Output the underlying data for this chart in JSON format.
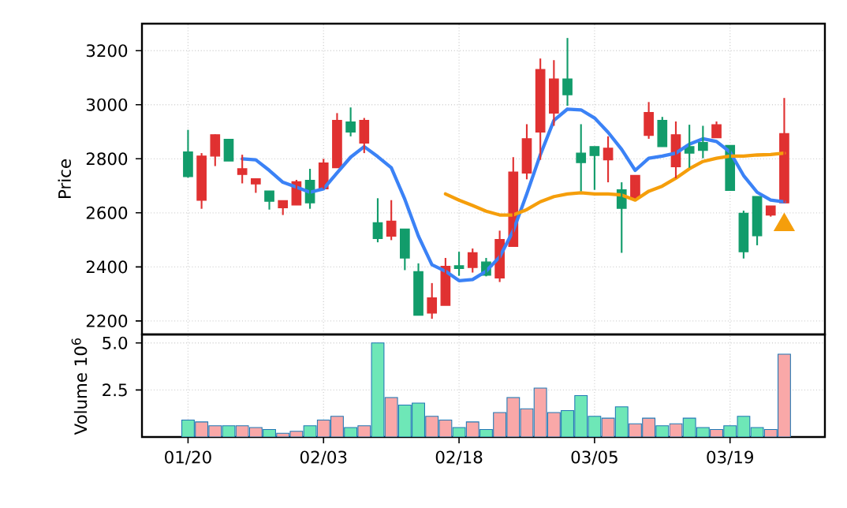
{
  "chart_data": [
    {
      "type": "candlestick",
      "ylabel": "Price",
      "categories": [
        null,
        null,
        null,
        null,
        null,
        null,
        null,
        null,
        null,
        null,
        null,
        null,
        null,
        null,
        null,
        null,
        null,
        null,
        null,
        null,
        null,
        null,
        null,
        null,
        null,
        null,
        null,
        null,
        null,
        null,
        null,
        null,
        null,
        null,
        null,
        null,
        null,
        null,
        null,
        null,
        null,
        null,
        null,
        null,
        null
      ],
      "ohlc": [
        [
          2734,
          2907,
          2730,
          2825
        ],
        [
          2810,
          2821,
          2615,
          2647
        ],
        [
          2889,
          2890,
          2773,
          2810
        ],
        [
          2792,
          2872,
          2792,
          2872
        ],
        [
          2763,
          2815,
          2709,
          2742
        ],
        [
          2726,
          2726,
          2674,
          2707
        ],
        [
          2643,
          2681,
          2612,
          2681
        ],
        [
          2645,
          2645,
          2592,
          2619
        ],
        [
          2715,
          2722,
          2629,
          2629
        ],
        [
          2637,
          2763,
          2615,
          2720
        ],
        [
          2784,
          2800,
          2689,
          2689
        ],
        [
          2942,
          2969,
          2767,
          2767
        ],
        [
          2899,
          2990,
          2883,
          2936
        ],
        [
          2942,
          2951,
          2821,
          2858
        ],
        [
          2505,
          2654,
          2491,
          2563
        ],
        [
          2569,
          2647,
          2499,
          2514
        ],
        [
          2433,
          2540,
          2388,
          2540
        ],
        [
          2221,
          2413,
          2221,
          2382
        ],
        [
          2285,
          2340,
          2208,
          2229
        ],
        [
          2402,
          2433,
          2258,
          2258
        ],
        [
          2394,
          2456,
          2367,
          2404
        ],
        [
          2452,
          2468,
          2379,
          2398
        ],
        [
          2369,
          2433,
          2365,
          2418
        ],
        [
          2501,
          2534,
          2344,
          2359
        ],
        [
          2751,
          2806,
          2476,
          2476
        ],
        [
          2874,
          2928,
          2724,
          2747
        ],
        [
          3130,
          3171,
          2796,
          2899
        ],
        [
          3095,
          3165,
          2922,
          2969
        ],
        [
          3037,
          3247,
          2996,
          3095
        ],
        [
          2786,
          2928,
          2680,
          2821
        ],
        [
          2812,
          2845,
          2685,
          2845
        ],
        [
          2839,
          2883,
          2713,
          2796
        ],
        [
          2617,
          2713,
          2452,
          2685
        ],
        [
          2738,
          2738,
          2654,
          2654
        ],
        [
          2971,
          3010,
          2874,
          2887
        ],
        [
          2845,
          2955,
          2845,
          2942
        ],
        [
          2889,
          2938,
          2728,
          2771
        ],
        [
          2821,
          2926,
          2767,
          2845
        ],
        [
          2831,
          2922,
          2802,
          2860
        ],
        [
          2926,
          2938,
          2878,
          2878
        ],
        [
          2683,
          2849,
          2683,
          2849
        ],
        [
          2456,
          2608,
          2431,
          2598
        ],
        [
          2515,
          2660,
          2480,
          2660
        ],
        [
          2625,
          2625,
          2586,
          2592
        ],
        [
          2893,
          3025,
          2637,
          2637
        ]
      ],
      "colors": [
        "#129c6b",
        "#e03131",
        "#e03131",
        "#129c6b",
        "#e03131",
        "#e03131",
        "#129c6b",
        "#e03131",
        "#e03131",
        "#129c6b",
        "#e03131",
        "#e03131",
        "#129c6b",
        "#e03131",
        "#129c6b",
        "#e03131",
        "#129c6b",
        "#129c6b",
        "#e03131",
        "#e03131",
        "#129c6b",
        "#e03131",
        "#129c6b",
        "#e03131",
        "#e03131",
        "#e03131",
        "#e03131",
        "#e03131",
        "#129c6b",
        "#129c6b",
        "#129c6b",
        "#e03131",
        "#129c6b",
        "#e03131",
        "#e03131",
        "#129c6b",
        "#e03131",
        "#129c6b",
        "#129c6b",
        "#e03131",
        "#129c6b",
        "#129c6b",
        "#129c6b",
        "#e03131",
        "#e03131"
      ],
      "series": [
        {
          "type": "line",
          "color": "#3b82f6",
          "values": [
            null,
            null,
            null,
            null,
            2800,
            2796,
            2757,
            2713,
            2695,
            2676,
            2689,
            2748,
            2806,
            2845,
            2808,
            2767,
            2650,
            2514,
            2408,
            2384,
            2349,
            2353,
            2384,
            2437,
            2534,
            2670,
            2815,
            2942,
            2984,
            2981,
            2951,
            2898,
            2835,
            2757,
            2802,
            2810,
            2821,
            2854,
            2874,
            2864,
            2825,
            2738,
            2676,
            2647,
            2641
          ]
        },
        {
          "type": "line",
          "color": "#f59e0b",
          "values": [
            null,
            null,
            null,
            null,
            null,
            null,
            null,
            null,
            null,
            null,
            null,
            null,
            null,
            null,
            null,
            null,
            null,
            null,
            null,
            2670,
            2647,
            2627,
            2606,
            2592,
            2592,
            2612,
            2641,
            2660,
            2670,
            2674,
            2670,
            2670,
            2666,
            2647,
            2680,
            2699,
            2728,
            2763,
            2790,
            2802,
            2810,
            2810,
            2814,
            2816,
            2821
          ]
        },
        {
          "type": "scatter",
          "marker": "triangle",
          "color": "#f59e0b",
          "values": [
            null,
            null,
            null,
            null,
            null,
            null,
            null,
            null,
            null,
            null,
            null,
            null,
            null,
            null,
            null,
            null,
            null,
            null,
            null,
            null,
            null,
            null,
            null,
            null,
            null,
            null,
            null,
            null,
            null,
            null,
            null,
            null,
            null,
            null,
            null,
            null,
            null,
            null,
            null,
            null,
            null,
            null,
            null,
            null,
            2555
          ]
        }
      ],
      "ylim": [
        2150,
        3300
      ],
      "yticks": [
        2200,
        2400,
        2600,
        2800,
        3000,
        3200
      ],
      "grid": true,
      "tick_labels": "y"
    },
    {
      "type": "bar",
      "ylabel": "Volume  10$^{6}$",
      "categories": [
        "01/20",
        null,
        null,
        null,
        null,
        null,
        null,
        null,
        null,
        null,
        "02/03",
        null,
        null,
        null,
        null,
        null,
        null,
        null,
        null,
        null,
        "02/18",
        null,
        null,
        null,
        null,
        null,
        null,
        null,
        null,
        null,
        "03/05",
        null,
        null,
        null,
        null,
        null,
        null,
        null,
        null,
        null,
        "03/19",
        null,
        null,
        null,
        null
      ],
      "values": [
        0.9,
        0.8,
        0.6,
        0.6,
        0.6,
        0.5,
        0.4,
        0.2,
        0.3,
        0.6,
        0.9,
        1.1,
        0.5,
        0.6,
        5.0,
        2.1,
        1.7,
        1.8,
        1.1,
        0.9,
        0.5,
        0.8,
        0.4,
        1.3,
        2.1,
        1.5,
        2.6,
        1.3,
        1.4,
        2.2,
        1.1,
        1.0,
        1.6,
        0.7,
        1.0,
        0.6,
        0.7,
        1.0,
        0.5,
        0.4,
        0.6,
        1.1,
        0.5,
        0.4,
        4.4
      ],
      "colors": [
        "#6ee7b7",
        "#f9a8a8",
        "#f9a8a8",
        "#6ee7b7",
        "#f9a8a8",
        "#f9a8a8",
        "#6ee7b7",
        "#f9a8a8",
        "#f9a8a8",
        "#6ee7b7",
        "#f9a8a8",
        "#f9a8a8",
        "#6ee7b7",
        "#f9a8a8",
        "#6ee7b7",
        "#f9a8a8",
        "#6ee7b7",
        "#6ee7b7",
        "#f9a8a8",
        "#f9a8a8",
        "#6ee7b7",
        "#f9a8a8",
        "#6ee7b7",
        "#f9a8a8",
        "#f9a8a8",
        "#f9a8a8",
        "#f9a8a8",
        "#f9a8a8",
        "#6ee7b7",
        "#6ee7b7",
        "#6ee7b7",
        "#f9a8a8",
        "#6ee7b7",
        "#f9a8a8",
        "#f9a8a8",
        "#6ee7b7",
        "#f9a8a8",
        "#6ee7b7",
        "#6ee7b7",
        "#f9a8a8",
        "#6ee7b7",
        "#6ee7b7",
        "#6ee7b7",
        "#f9a8a8",
        "#f9a8a8"
      ],
      "ylim": [
        0,
        5.45
      ],
      "yticks": [
        {
          "value": 2.5,
          "label": "2.5"
        },
        {
          "value": 5.0,
          "label": "5.0"
        }
      ],
      "grid": true
    }
  ]
}
